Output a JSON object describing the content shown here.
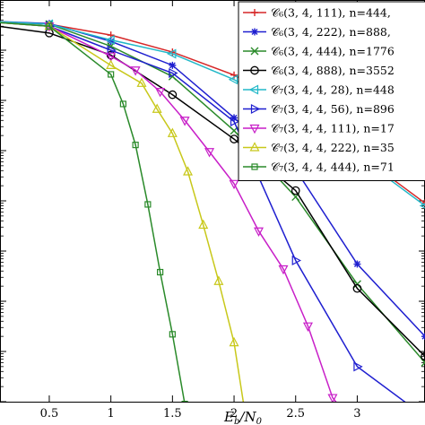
{
  "chart_data": {
    "type": "line",
    "xlabel": "E_b/N_0",
    "xlim": [
      0.1,
      3.55
    ],
    "ylim": [
      1e-08,
      1
    ],
    "y_log_scale": true,
    "grid": false,
    "x_ticks": [
      0.5,
      1,
      1.5,
      2,
      2.5,
      3
    ],
    "x_tick_labels": [
      "0.5",
      "1",
      "1.5",
      "2",
      "2.5",
      "3"
    ],
    "legend_placement": "top-right",
    "series": [
      {
        "name": "C6(3,4,111), n=444,",
        "legend_label": "𝒞₆(3, 4, 111), n=444,",
        "color": "#d62728",
        "marker": "plus",
        "x": [
          0.0,
          0.5,
          1.0,
          1.5,
          2.0,
          2.5,
          3.0,
          3.55
        ],
        "y": [
          0.38,
          0.33,
          0.2,
          0.092,
          0.032,
          0.0062,
          0.0009,
          9e-05
        ]
      },
      {
        "name": "C6(3,4,222), n=888,",
        "legend_label": "𝒞₆(3, 4, 222), n=888,",
        "color": "#1f1fd0",
        "marker": "star",
        "x": [
          0.0,
          0.5,
          1.0,
          1.5,
          2.0,
          2.5,
          3.0,
          3.55
        ],
        "y": [
          0.38,
          0.34,
          0.15,
          0.05,
          0.0045,
          0.00042,
          5.5e-06,
          2e-07
        ]
      },
      {
        "name": "C6(3,4,444), n=1776",
        "legend_label": "𝒞₆(3, 4, 444), n=1776",
        "color": "#2a8a2a",
        "marker": "x",
        "x": [
          0.0,
          0.5,
          1.0,
          1.5,
          2.0,
          2.5,
          3.0,
          3.55
        ],
        "y": [
          0.37,
          0.33,
          0.12,
          0.03,
          0.0025,
          0.00012,
          2.2e-06,
          6e-08
        ]
      },
      {
        "name": "C6(3,4,888), n=3552",
        "legend_label": "𝒞₆(3, 4, 888), n=3552",
        "color": "#000000",
        "marker": "circle",
        "x": [
          0.0,
          0.5,
          1.0,
          1.5,
          2.0,
          2.5,
          3.0,
          3.55
        ],
        "y": [
          0.32,
          0.22,
          0.08,
          0.013,
          0.0017,
          0.00016,
          1.8e-06,
          8e-08
        ]
      },
      {
        "name": "C7(3,4,4,28), n=448",
        "legend_label": "𝒞₇(3, 4, 4, 28), n=448",
        "color": "#22b8c8",
        "marker": "triangle-left",
        "x": [
          0.0,
          0.5,
          1.0,
          1.5,
          2.0,
          2.5,
          3.0,
          3.55
        ],
        "y": [
          0.38,
          0.33,
          0.16,
          0.085,
          0.026,
          0.0052,
          0.0008,
          8e-05
        ]
      },
      {
        "name": "C7(3,4,4,56), n=896",
        "legend_label": "𝒞₇(3, 4, 4, 56), n=896",
        "color": "#1f1fd0",
        "marker": "triangle-right",
        "x": [
          0.0,
          0.5,
          1.0,
          1.5,
          2.0,
          2.5,
          3.0,
          3.55
        ],
        "y": [
          0.37,
          0.3,
          0.1,
          0.035,
          0.0038,
          6.5e-06,
          5e-08,
          5e-09
        ]
      },
      {
        "name": "C7(3,4,4,111), n=17",
        "legend_label": "𝒞₇(3, 4, 4, 111), n=17",
        "color": "#c81fc8",
        "marker": "triangle-down",
        "x": [
          0.0,
          0.5,
          1.0,
          1.2,
          1.4,
          1.6,
          1.8,
          2.0,
          2.2,
          2.4,
          2.6,
          2.8,
          3.0
        ],
        "y": [
          0.37,
          0.3,
          0.076,
          0.04,
          0.015,
          0.004,
          0.00095,
          0.00022,
          2.5e-05,
          4.4e-06,
          3.2e-07,
          1.2e-08,
          3e-09
        ]
      },
      {
        "name": "C7(3,4,4,222), n=35",
        "legend_label": "𝒞₇(3, 4, 4, 222), n=35",
        "color": "#c8c81a",
        "marker": "triangle-up",
        "x": [
          0.0,
          0.5,
          1.0,
          1.25,
          1.375,
          1.5,
          1.625,
          1.75,
          1.875,
          2.0,
          2.1
        ],
        "y": [
          0.37,
          0.3,
          0.05,
          0.022,
          0.0067,
          0.0022,
          0.00038,
          3.3e-05,
          2.5e-06,
          1.5e-07,
          4e-09
        ]
      },
      {
        "name": "C7(3,4,4,444), n=71",
        "legend_label": "𝒞₇(3, 4, 4, 444), n=71",
        "color": "#2a8a2a",
        "marker": "square",
        "x": [
          0.0,
          0.5,
          1.0,
          1.1,
          1.2,
          1.3,
          1.4,
          1.5,
          1.6,
          1.7
        ],
        "y": [
          0.37,
          0.3,
          0.033,
          0.0085,
          0.0013,
          8.5e-05,
          3.8e-06,
          2.2e-07,
          9e-09,
          2e-09
        ]
      }
    ]
  }
}
